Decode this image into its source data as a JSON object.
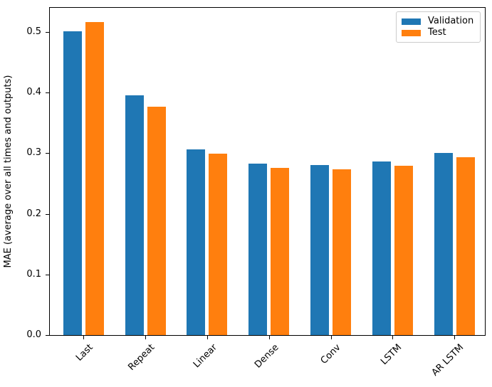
{
  "chart_data": {
    "type": "bar",
    "title": "",
    "xlabel": "",
    "ylabel": "MAE (average over all times and outputs)",
    "categories": [
      "Last",
      "Repeat",
      "Linear",
      "Dense",
      "Conv",
      "LSTM",
      "AR LSTM"
    ],
    "series": [
      {
        "name": "Validation",
        "color": "#1f77b4",
        "values": [
          0.501,
          0.396,
          0.306,
          0.283,
          0.281,
          0.286,
          0.301
        ]
      },
      {
        "name": "Test",
        "color": "#ff7f0e",
        "values": [
          0.516,
          0.377,
          0.299,
          0.276,
          0.274,
          0.279,
          0.294
        ]
      }
    ],
    "ylim": [
      0,
      0.54
    ],
    "ytick_values": [
      0.0,
      0.1,
      0.2,
      0.3,
      0.4,
      0.5
    ],
    "ytick_labels": [
      "0.0",
      "0.1",
      "0.2",
      "0.3",
      "0.4",
      "0.5"
    ],
    "xtick_rotation": 45,
    "grid": false,
    "legend": {
      "position": "upper right",
      "entries": [
        "Validation",
        "Test"
      ]
    }
  }
}
